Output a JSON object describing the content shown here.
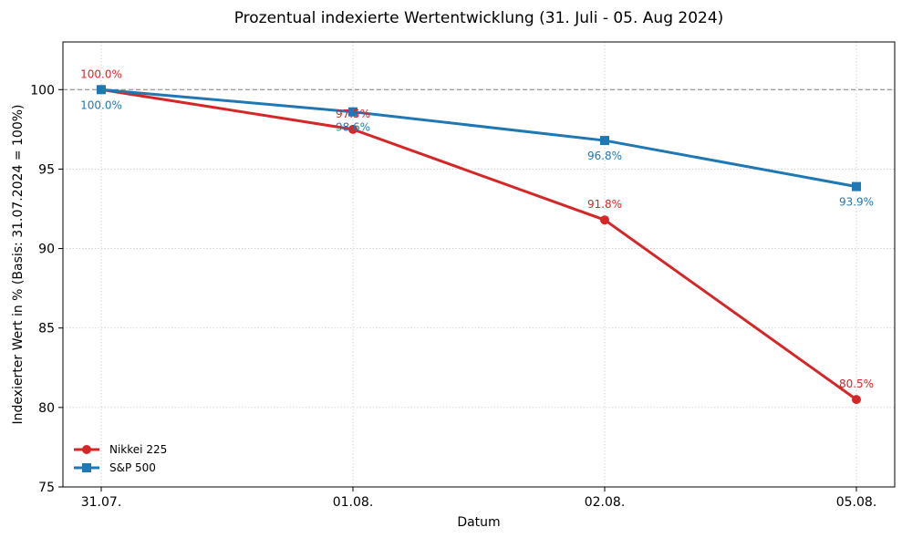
{
  "chart_data": {
    "type": "line",
    "title": "Prozentual indexierte Wertentwicklung (31. Juli - 05. Aug 2024)",
    "xlabel": "Datum",
    "ylabel": "Indexierter Wert in % (Basis: 31.07.2024 = 100%)",
    "categories": [
      "31.07.",
      "01.08.",
      "02.08.",
      "05.08."
    ],
    "ylim": [
      75,
      103
    ],
    "yticks": [
      75,
      80,
      85,
      90,
      95,
      100
    ],
    "grid": true,
    "reference_line": 100,
    "legend_position": "bottom-left",
    "series": [
      {
        "name": "Nikkei 225",
        "color": "#d62728",
        "marker": "circle",
        "values": [
          100.0,
          97.5,
          91.8,
          80.5
        ],
        "labels": [
          "100.0%",
          "97.5%",
          "91.8%",
          "80.5%"
        ]
      },
      {
        "name": "S&P 500",
        "color": "#1f77b4",
        "marker": "square",
        "values": [
          100.0,
          98.6,
          96.8,
          93.9
        ],
        "labels": [
          "100.0%",
          "98.6%",
          "96.8%",
          "93.9%"
        ]
      }
    ]
  }
}
